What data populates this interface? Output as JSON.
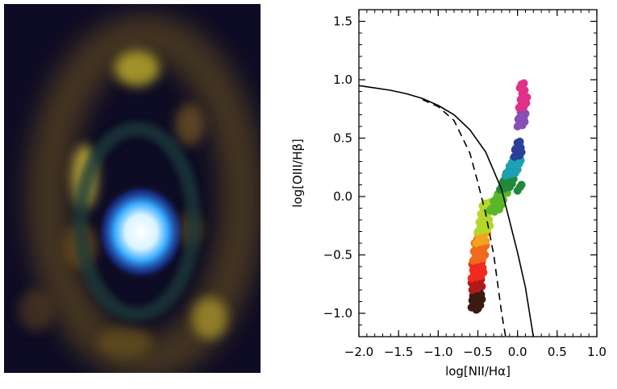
{
  "chart_data": {
    "type": "scatter",
    "title": "",
    "xlabel": "log[NII/Hα]",
    "ylabel": "log[OIII/Hβ]",
    "xlim": [
      -2.0,
      1.0
    ],
    "ylim": [
      -1.2,
      1.6
    ],
    "xticks": [
      -2.0,
      -1.5,
      -1.0,
      -0.5,
      0.0,
      0.5,
      1.0
    ],
    "yticks": [
      -1.0,
      -0.5,
      0.0,
      0.5,
      1.0,
      1.5
    ],
    "xtick_labels": [
      "−2.0",
      "−1.5",
      "−1.0",
      "−0.5",
      "0.0",
      "0.5",
      "1.0"
    ],
    "ytick_labels": [
      "−1.0",
      "−0.5",
      "0.0",
      "0.5",
      "1.0",
      "1.5"
    ],
    "grid": false,
    "lines": [
      {
        "style": "solid",
        "color": "#000000",
        "x": [
          -2.0,
          -1.8,
          -1.6,
          -1.4,
          -1.2,
          -1.0,
          -0.8,
          -0.6,
          -0.4,
          -0.2,
          0.0,
          0.1,
          0.2
        ],
        "y": [
          0.95,
          0.93,
          0.91,
          0.88,
          0.84,
          0.78,
          0.7,
          0.57,
          0.38,
          0.06,
          -0.48,
          -0.78,
          -1.2
        ]
      },
      {
        "style": "dashed",
        "color": "#000000",
        "x": [
          -1.2,
          -1.0,
          -0.8,
          -0.6,
          -0.5,
          -0.4,
          -0.3,
          -0.2,
          -0.15
        ],
        "y": [
          0.83,
          0.77,
          0.65,
          0.37,
          0.12,
          -0.15,
          -0.5,
          -1.0,
          -1.2
        ]
      }
    ],
    "series": [
      {
        "color": "#3b1a12",
        "x": [
          -0.58,
          -0.55,
          -0.52,
          -0.5,
          -0.47,
          -0.45,
          -0.56,
          -0.53,
          -0.49,
          -0.54,
          -0.51,
          -0.48,
          -0.57,
          -0.5,
          -0.46,
          -0.52
        ],
        "y": [
          -0.95,
          -0.92,
          -0.97,
          -0.9,
          -0.93,
          -0.88,
          -0.85,
          -0.83,
          -0.86,
          -0.8,
          -0.78,
          -0.81,
          -0.89,
          -0.96,
          -0.84,
          -0.87
        ]
      },
      {
        "color": "#b21a1a",
        "x": [
          -0.57,
          -0.54,
          -0.51,
          -0.48,
          -0.45,
          -0.55,
          -0.52,
          -0.49,
          -0.46,
          -0.58,
          -0.53,
          -0.5
        ],
        "y": [
          -0.8,
          -0.77,
          -0.79,
          -0.75,
          -0.77,
          -0.72,
          -0.7,
          -0.73,
          -0.71,
          -0.74,
          -0.68,
          -0.76
        ]
      },
      {
        "color": "#ee2b1e",
        "x": [
          -0.58,
          -0.55,
          -0.52,
          -0.49,
          -0.46,
          -0.43,
          -0.56,
          -0.53,
          -0.5,
          -0.47,
          -0.44,
          -0.57,
          -0.54,
          -0.51,
          -0.48,
          -0.45,
          -0.52,
          -0.49
        ],
        "y": [
          -0.7,
          -0.67,
          -0.69,
          -0.66,
          -0.68,
          -0.65,
          -0.63,
          -0.6,
          -0.62,
          -0.59,
          -0.61,
          -0.58,
          -0.55,
          -0.57,
          -0.54,
          -0.56,
          -0.64,
          -0.52
        ]
      },
      {
        "color": "#f06a1e",
        "x": [
          -0.56,
          -0.53,
          -0.5,
          -0.47,
          -0.44,
          -0.41,
          -0.55,
          -0.52,
          -0.49,
          -0.46,
          -0.43,
          -0.4,
          -0.54,
          -0.51,
          -0.48,
          -0.45
        ],
        "y": [
          -0.55,
          -0.52,
          -0.54,
          -0.51,
          -0.53,
          -0.5,
          -0.47,
          -0.44,
          -0.46,
          -0.43,
          -0.45,
          -0.42,
          -0.4,
          -0.37,
          -0.39,
          -0.36
        ]
      },
      {
        "color": "#f5a21e",
        "x": [
          -0.52,
          -0.49,
          -0.46,
          -0.43,
          -0.4,
          -0.5,
          -0.47,
          -0.44,
          -0.41,
          -0.38
        ],
        "y": [
          -0.4,
          -0.37,
          -0.39,
          -0.36,
          -0.38,
          -0.32,
          -0.3,
          -0.33,
          -0.29,
          -0.31
        ]
      },
      {
        "color": "#b5d62a",
        "x": [
          -0.5,
          -0.47,
          -0.44,
          -0.41,
          -0.38,
          -0.35,
          -0.48,
          -0.45,
          -0.42,
          -0.39,
          -0.36,
          -0.46,
          -0.43,
          -0.4,
          -0.37,
          -0.34,
          -0.44,
          -0.41,
          -0.38,
          -0.35
        ],
        "y": [
          -0.3,
          -0.27,
          -0.29,
          -0.26,
          -0.28,
          -0.25,
          -0.22,
          -0.19,
          -0.21,
          -0.18,
          -0.2,
          -0.15,
          -0.12,
          -0.14,
          -0.11,
          -0.13,
          -0.08,
          -0.06,
          -0.09,
          -0.05
        ]
      },
      {
        "color": "#5ab52a",
        "x": [
          -0.35,
          -0.32,
          -0.29,
          -0.26,
          -0.23,
          -0.2,
          -0.3,
          -0.27,
          -0.24,
          -0.21,
          -0.18,
          -0.25,
          -0.22,
          -0.19,
          -0.16,
          -0.13,
          -0.2,
          -0.17,
          -0.14
        ],
        "y": [
          -0.12,
          -0.1,
          -0.13,
          -0.08,
          -0.11,
          -0.07,
          -0.04,
          -0.02,
          -0.05,
          -0.01,
          -0.03,
          0.02,
          0.04,
          0.01,
          0.05,
          0.03,
          0.08,
          0.1,
          0.07
        ]
      },
      {
        "color": "#1e8a3a",
        "x": [
          -0.22,
          -0.19,
          -0.16,
          -0.13,
          -0.1,
          -0.07,
          -0.18,
          -0.15,
          -0.12,
          -0.09,
          -0.05,
          -0.14,
          -0.11,
          -0.08,
          0.0,
          0.03,
          0.05,
          -0.1
        ],
        "y": [
          0.06,
          0.09,
          0.07,
          0.1,
          0.08,
          0.11,
          0.13,
          0.16,
          0.14,
          0.17,
          0.15,
          0.2,
          0.22,
          0.19,
          0.05,
          0.08,
          0.1,
          0.24
        ]
      },
      {
        "color": "#1ea0b4",
        "x": [
          -0.15,
          -0.12,
          -0.09,
          -0.06,
          -0.03,
          0.0,
          -0.1,
          -0.07,
          -0.04,
          -0.01,
          0.02,
          0.04,
          -0.05,
          0.0,
          0.03
        ],
        "y": [
          0.18,
          0.21,
          0.19,
          0.22,
          0.2,
          0.23,
          0.26,
          0.29,
          0.27,
          0.3,
          0.28,
          0.31,
          0.33,
          0.36,
          0.34
        ]
      },
      {
        "color": "#2a3f9a",
        "x": [
          -0.04,
          -0.01,
          0.02,
          0.05,
          -0.02,
          0.01,
          0.04,
          0.0,
          0.03,
          -0.03
        ],
        "y": [
          0.34,
          0.37,
          0.35,
          0.38,
          0.41,
          0.44,
          0.42,
          0.46,
          0.47,
          0.4
        ]
      },
      {
        "color": "#8a4fb4",
        "x": [
          0.0,
          0.03,
          0.06,
          0.09,
          0.02,
          0.05,
          0.08,
          0.04,
          0.07,
          0.01,
          0.1
        ],
        "y": [
          0.6,
          0.63,
          0.61,
          0.64,
          0.67,
          0.7,
          0.68,
          0.72,
          0.74,
          0.66,
          0.71
        ]
      },
      {
        "color": "#e0318a",
        "x": [
          0.02,
          0.05,
          0.08,
          0.11,
          0.04,
          0.07,
          0.1,
          0.06,
          0.09,
          0.03,
          0.12,
          0.05,
          0.08
        ],
        "y": [
          0.76,
          0.79,
          0.77,
          0.8,
          0.83,
          0.86,
          0.84,
          0.88,
          0.91,
          0.93,
          0.85,
          0.96,
          0.97
        ]
      }
    ]
  }
}
